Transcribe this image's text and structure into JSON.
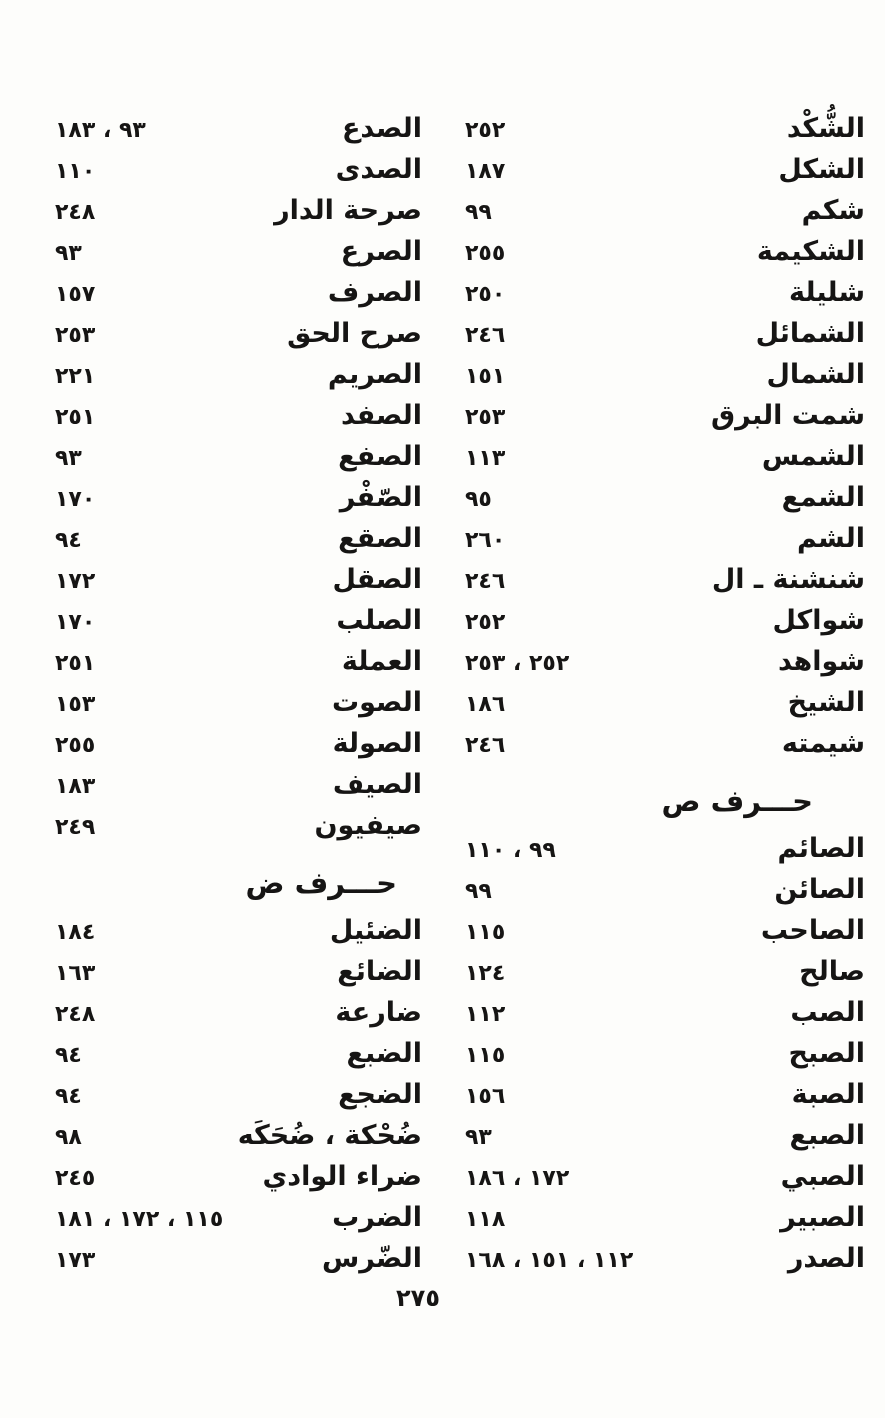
{
  "page_number": "٢٧٥",
  "ink_color": "#161514",
  "paper_color": "#fdfdfb",
  "columns": {
    "right": {
      "rows": [
        {
          "type": "entry",
          "term": "الشُّكْد",
          "pages": "٢٥٢"
        },
        {
          "type": "entry",
          "term": "الشكل",
          "pages": "١٨٧"
        },
        {
          "type": "entry",
          "term": "شكم",
          "pages": "٩٩"
        },
        {
          "type": "entry",
          "term": "الشكيمة",
          "pages": "٢٥٥"
        },
        {
          "type": "entry",
          "term": "شليلة",
          "pages": "٢٥٠"
        },
        {
          "type": "entry",
          "term": "الشمائل",
          "pages": "٢٤٦"
        },
        {
          "type": "entry",
          "term": "الشمال",
          "pages": "١٥١"
        },
        {
          "type": "entry",
          "term": "شمت البرق",
          "pages": "٢٥٣"
        },
        {
          "type": "entry",
          "term": "الشمس",
          "pages": "١١٣"
        },
        {
          "type": "entry",
          "term": "الشمع",
          "pages": "٩٥"
        },
        {
          "type": "entry",
          "term": "الشم",
          "pages": "٢٦٠"
        },
        {
          "type": "entry",
          "term": "شنشنة ـ ال",
          "pages": "٢٤٦"
        },
        {
          "type": "entry",
          "term": "شواكل",
          "pages": "٢٥٢"
        },
        {
          "type": "entry",
          "term": "شواهد",
          "pages": "٢٥٢ ، ٢٥٣"
        },
        {
          "type": "entry",
          "term": "الشيخ",
          "pages": "١٨٦"
        },
        {
          "type": "entry",
          "term": "شيمته",
          "pages": "٢٤٦"
        },
        {
          "type": "header",
          "label": "حـــرف ص"
        },
        {
          "type": "entry",
          "term": "الصائم",
          "pages": "٩٩ ، ١١٠"
        },
        {
          "type": "entry",
          "term": "الصائن",
          "pages": "٩٩"
        },
        {
          "type": "entry",
          "term": "الصاحب",
          "pages": "١١٥"
        },
        {
          "type": "entry",
          "term": "صالح",
          "pages": "١٢٤"
        },
        {
          "type": "entry",
          "term": "الصب",
          "pages": "١١٢"
        },
        {
          "type": "entry",
          "term": "الصبح",
          "pages": "١١٥"
        },
        {
          "type": "entry",
          "term": "الصبة",
          "pages": "١٥٦"
        },
        {
          "type": "entry",
          "term": "الصبع",
          "pages": "٩٣"
        },
        {
          "type": "entry",
          "term": "الصبي",
          "pages": "١٧٢ ، ١٨٦"
        },
        {
          "type": "entry",
          "term": "الصبير",
          "pages": "١١٨"
        },
        {
          "type": "entry",
          "term": "الصدر",
          "pages": "١١٢ ، ١٥١ ، ١٦٨"
        }
      ]
    },
    "left": {
      "rows": [
        {
          "type": "entry",
          "term": "الصدع",
          "pages": "٩٣ ، ١٨٣"
        },
        {
          "type": "entry",
          "term": "الصدى",
          "pages": "١١٠"
        },
        {
          "type": "entry",
          "term": "صرحة الدار",
          "pages": "٢٤٨"
        },
        {
          "type": "entry",
          "term": "الصرع",
          "pages": "٩٣"
        },
        {
          "type": "entry",
          "term": "الصرف",
          "pages": "١٥٧"
        },
        {
          "type": "entry",
          "term": "صرح الحق",
          "pages": "٢٥٣"
        },
        {
          "type": "entry",
          "term": "الصريم",
          "pages": "٢٢١"
        },
        {
          "type": "entry",
          "term": "الصفد",
          "pages": "٢٥١"
        },
        {
          "type": "entry",
          "term": "الصفع",
          "pages": "٩٣"
        },
        {
          "type": "entry",
          "term": "الصّفْر",
          "pages": "١٧٠"
        },
        {
          "type": "entry",
          "term": "الصقع",
          "pages": "٩٤"
        },
        {
          "type": "entry",
          "term": "الصقل",
          "pages": "١٧٢"
        },
        {
          "type": "entry",
          "term": "الصلب",
          "pages": "١٧٠"
        },
        {
          "type": "entry",
          "term": "العملة",
          "pages": "٢٥١"
        },
        {
          "type": "entry",
          "term": "الصوت",
          "pages": "١٥٣"
        },
        {
          "type": "entry",
          "term": "الصولة",
          "pages": "٢٥٥"
        },
        {
          "type": "entry",
          "term": "الصيف",
          "pages": "١٨٣"
        },
        {
          "type": "entry",
          "term": "صيفيون",
          "pages": "٢٤٩"
        },
        {
          "type": "header",
          "label": "حـــرف ض"
        },
        {
          "type": "entry",
          "term": "الضئيل",
          "pages": "١٨٤"
        },
        {
          "type": "entry",
          "term": "الضائع",
          "pages": "١٦٣"
        },
        {
          "type": "entry",
          "term": "ضارعة",
          "pages": "٢٤٨"
        },
        {
          "type": "entry",
          "term": "الضبع",
          "pages": "٩٤"
        },
        {
          "type": "entry",
          "term": "الضجع",
          "pages": "٩٤"
        },
        {
          "type": "entry",
          "term": "ضُحْكة ، ضُحَكَه",
          "pages": "٩٨"
        },
        {
          "type": "entry",
          "term": "ضراء الوادي",
          "pages": "٢٤٥"
        },
        {
          "type": "entry",
          "term": "الضرب",
          "pages": "١١٥ ، ١٧٢ ، ١٨١"
        },
        {
          "type": "entry",
          "term": "الضّرس",
          "pages": "١٧٣"
        }
      ]
    }
  }
}
